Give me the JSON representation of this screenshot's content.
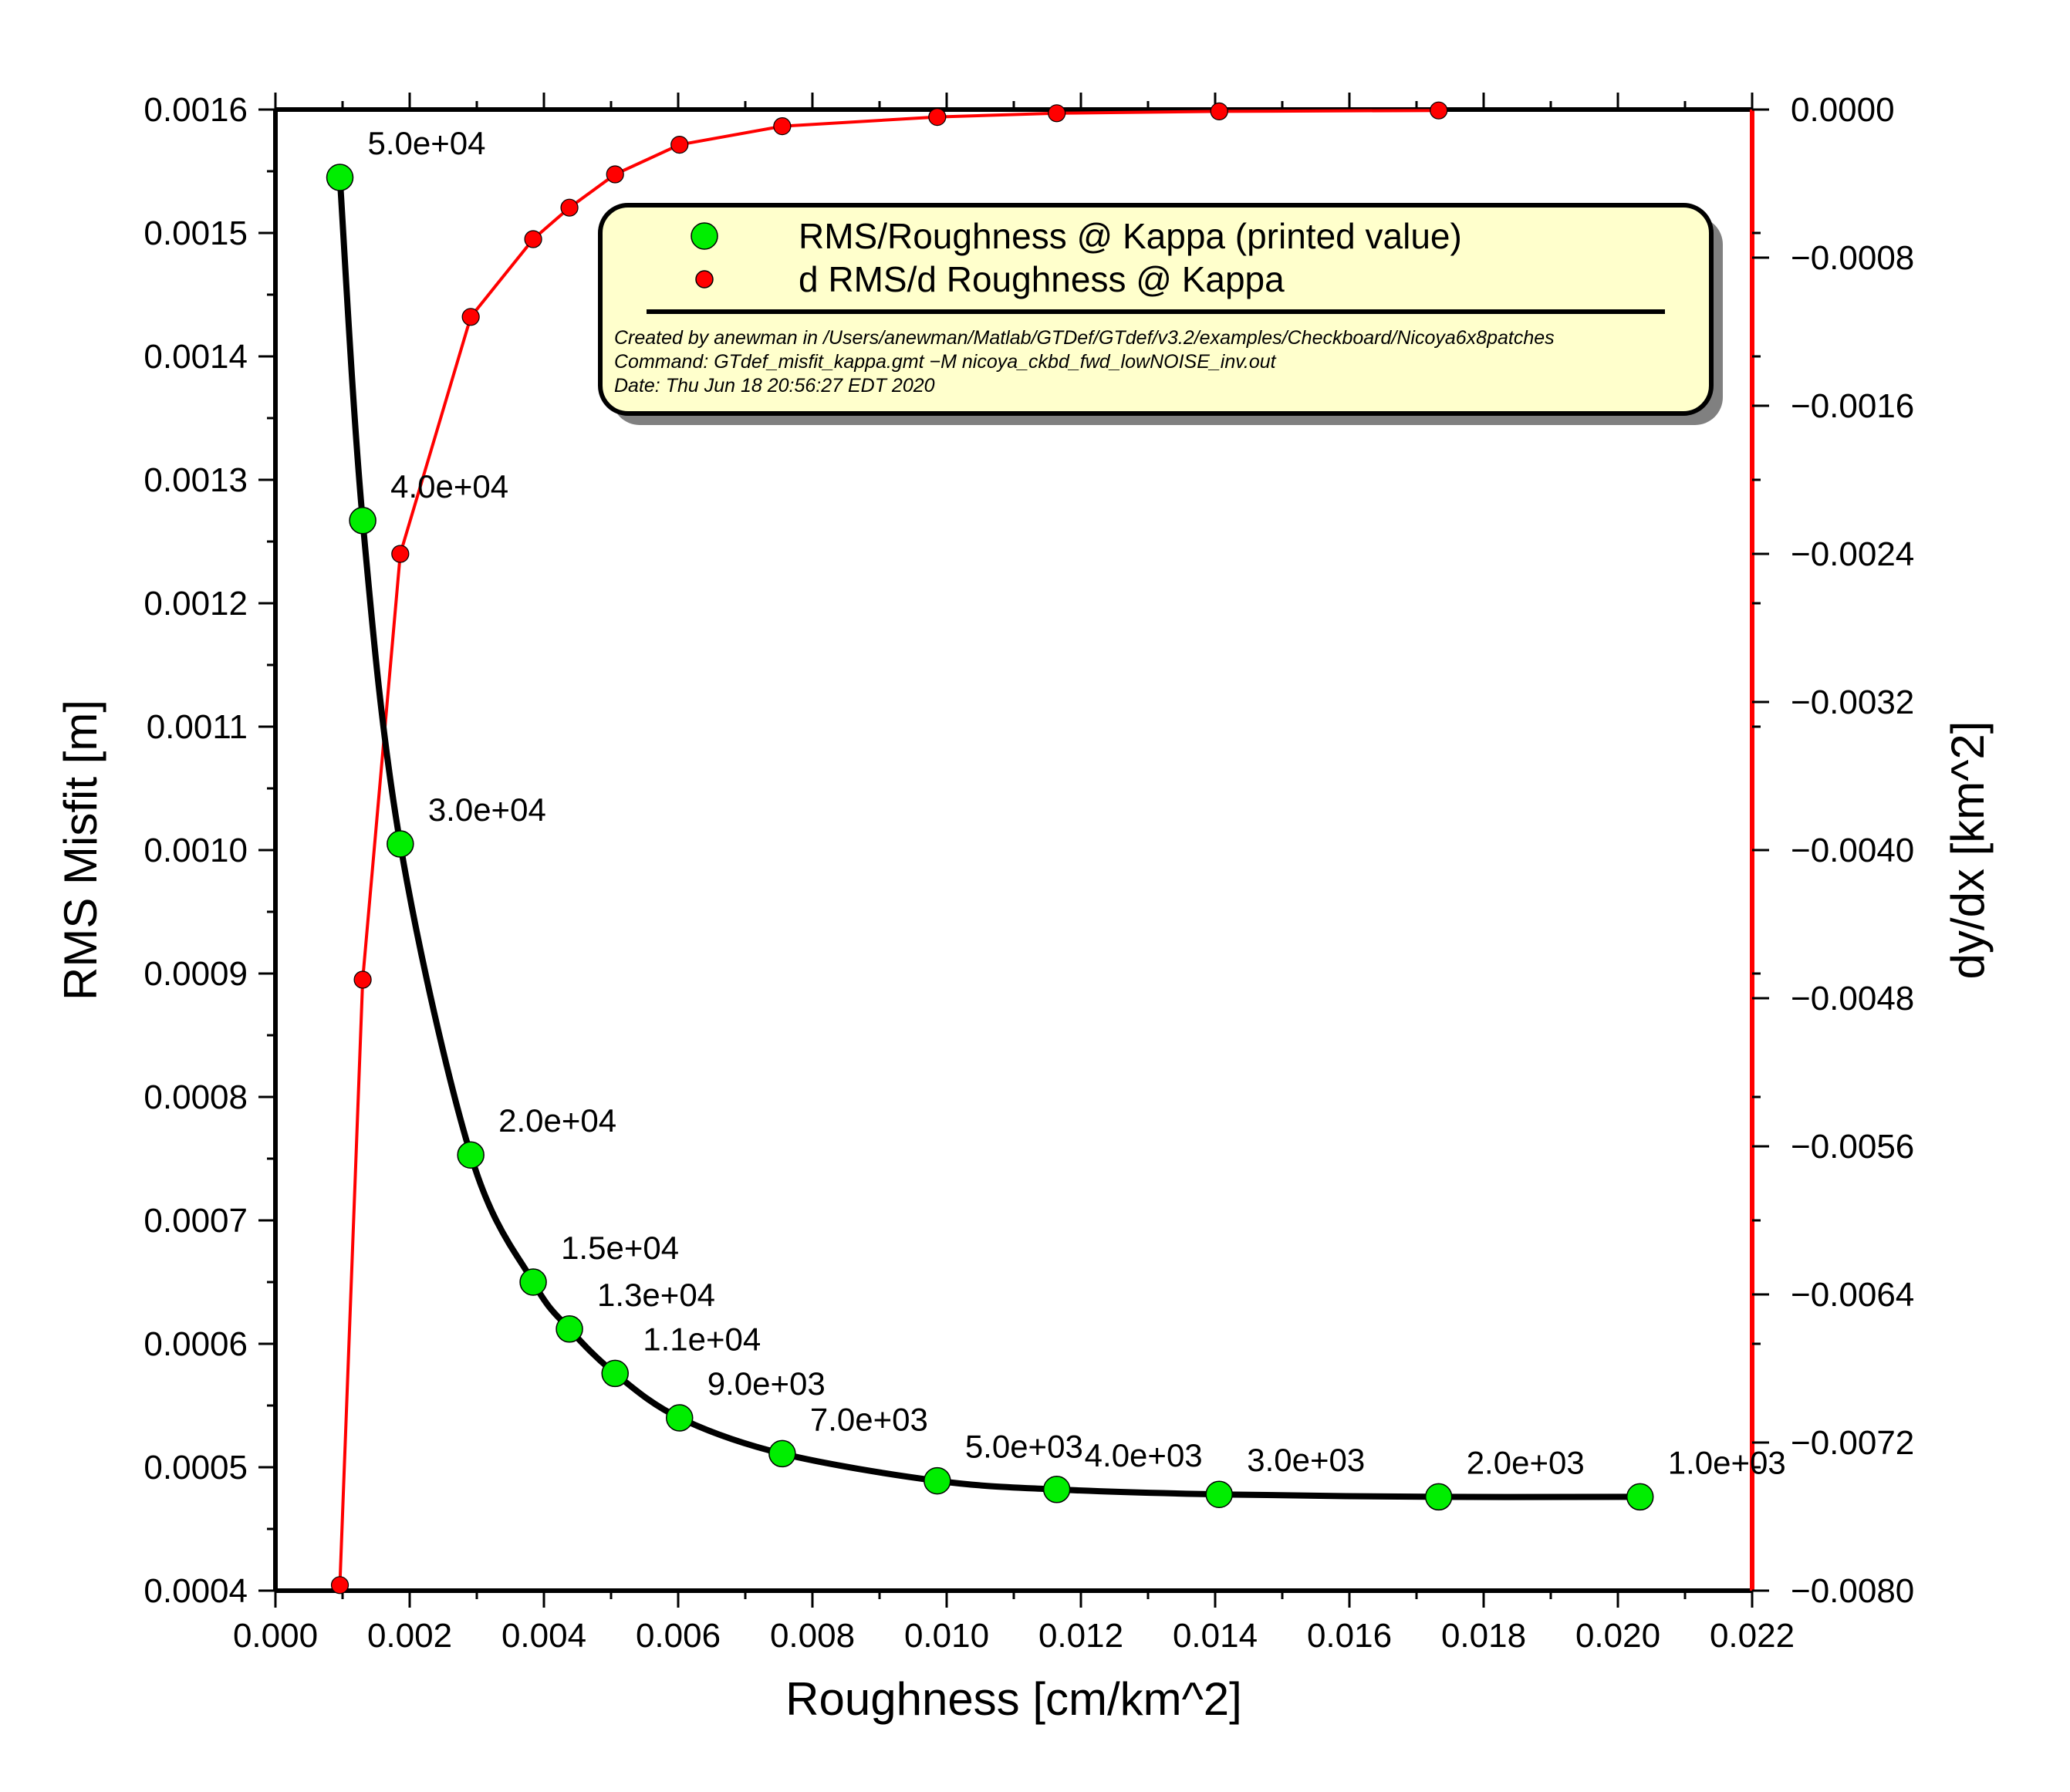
{
  "chart_data": {
    "type": "line",
    "xlabel": "Roughness [cm/km^2]",
    "ylabel": "RMS Misfit [m]",
    "y2label": "dy/dx [km^2]",
    "xlim": [
      0.0,
      0.022
    ],
    "ylim": [
      0.0004,
      0.0016
    ],
    "y2lim": [
      -0.008,
      0.0
    ],
    "x_ticks": [
      "0.000",
      "0.002",
      "0.004",
      "0.006",
      "0.008",
      "0.010",
      "0.012",
      "0.014",
      "0.016",
      "0.018",
      "0.020",
      "0.022"
    ],
    "y_ticks": [
      "0.0004",
      "0.0005",
      "0.0006",
      "0.0007",
      "0.0008",
      "0.0009",
      "0.0010",
      "0.0011",
      "0.0012",
      "0.0013",
      "0.0014",
      "0.0015",
      "0.0016"
    ],
    "y2_ticks": [
      "0.0000",
      "−0.0008",
      "−0.0016",
      "−0.0024",
      "−0.0032",
      "−0.0040",
      "−0.0048",
      "−0.0056",
      "−0.0064",
      "−0.0072",
      "−0.0080"
    ],
    "grid": false,
    "legend_position": "top-right",
    "series": [
      {
        "name": "RMS/Roughness @ Kappa (printed value)",
        "axis": "left",
        "color": "#00ee00",
        "line_color": "#000000",
        "x": [
          0.00096,
          0.0013,
          0.00186,
          0.00291,
          0.00384,
          0.00438,
          0.00506,
          0.00602,
          0.00755,
          0.00986,
          0.01164,
          0.01406,
          0.01733,
          0.02033
        ],
        "y": [
          0.001545,
          0.001267,
          0.001005,
          0.000753,
          0.00065,
          0.000612,
          0.000576,
          0.00054,
          0.000511,
          0.000489,
          0.000482,
          0.000478,
          0.000476,
          0.000476
        ],
        "labels": [
          "5.0e+04",
          "4.0e+04",
          "3.0e+04",
          "2.0e+04",
          "1.5e+04",
          "1.3e+04",
          "1.1e+04",
          "9.0e+03",
          "7.0e+03",
          "5.0e+03",
          "4.0e+03",
          "3.0e+03",
          "2.0e+03",
          "1.0e+03"
        ]
      },
      {
        "name": "d RMS/d Roughness @ Kappa",
        "axis": "right",
        "color": "#ff0000",
        "x": [
          0.00096,
          0.0013,
          0.00186,
          0.00291,
          0.00384,
          0.00438,
          0.00506,
          0.00602,
          0.00755,
          0.00986,
          0.01164,
          0.01406,
          0.01733
        ],
        "y": [
          -0.00797,
          -0.0047,
          -0.0024,
          -0.00112,
          -0.0007,
          -0.00053,
          -0.00035,
          -0.00019,
          -9e-05,
          -4e-05,
          -2e-05,
          -1e-05,
          -5e-06
        ]
      }
    ]
  },
  "legend": {
    "entries": [
      "RMS/Roughness @ Kappa (printed value)",
      "d RMS/d Roughness @ Kappa"
    ],
    "meta_created": "Created by anewman in /Users/anewman/Matlab/GTDef/GTdef/v3.2/examples/Checkboard/Nicoya6x8patches",
    "meta_command": "Command: GTdef_misfit_kappa.gmt −M nicoya_ckbd_fwd_lowNOISE_inv.out",
    "meta_date": "Date: Thu Jun 18 20:56:27 EDT 2020"
  },
  "colors": {
    "frame": "#000000",
    "right_axis": "#ff0000",
    "legend_bg": "#ffffcc",
    "legend_shadow": "#808080"
  }
}
